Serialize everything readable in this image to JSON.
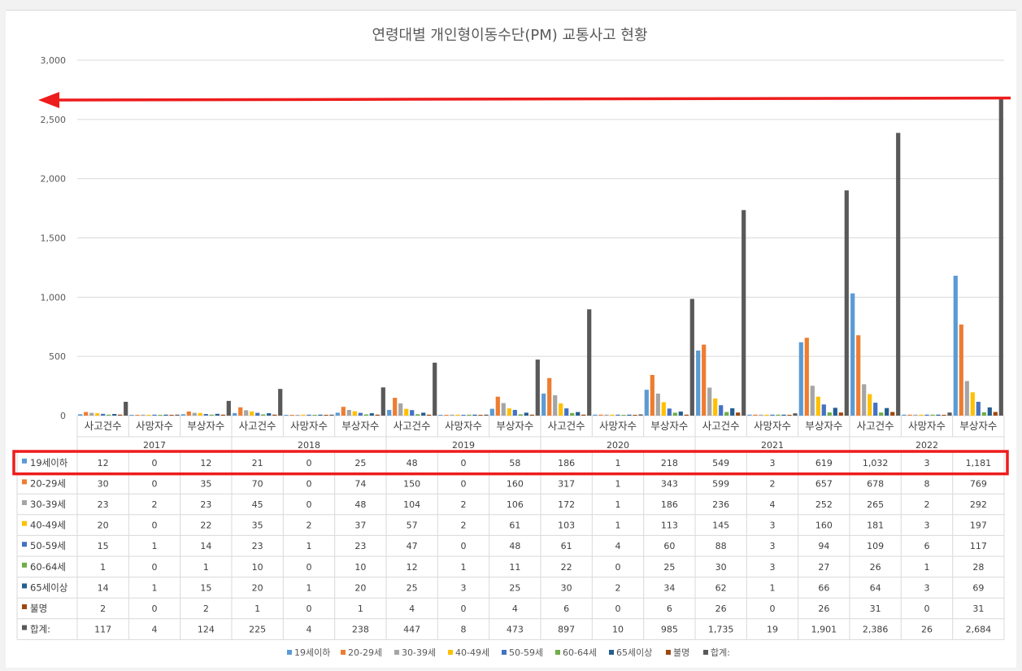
{
  "chart_data": {
    "type": "bar",
    "title": "연령대별 개인형이동수단(PM) 교통사고 현황",
    "ylim": [
      0,
      3000
    ],
    "yticks": [
      0,
      500,
      1000,
      1500,
      2000,
      2500,
      3000
    ],
    "ytick_labels": [
      "0",
      "500",
      "1,000",
      "1,500",
      "2,000",
      "2,500",
      "3,000"
    ],
    "grid": true,
    "legend_position": "bottom",
    "years": [
      "2017",
      "2018",
      "2019",
      "2020",
      "2021",
      "2022"
    ],
    "subcategories": [
      "사고건수",
      "사망자수",
      "부상자수"
    ],
    "series": [
      {
        "name": "19세이하",
        "color": "#5b9bd5",
        "values": [
          12,
          0,
          12,
          21,
          0,
          25,
          48,
          0,
          58,
          186,
          1,
          218,
          549,
          3,
          619,
          1032,
          3,
          1181
        ],
        "labels": [
          "12",
          "0",
          "12",
          "21",
          "0",
          "25",
          "48",
          "0",
          "58",
          "186",
          "1",
          "218",
          "549",
          "3",
          "619",
          "1,032",
          "3",
          "1,181"
        ]
      },
      {
        "name": "20-29세",
        "color": "#ed7d31",
        "values": [
          30,
          0,
          35,
          70,
          0,
          74,
          150,
          0,
          160,
          317,
          1,
          343,
          599,
          2,
          657,
          678,
          8,
          769
        ],
        "labels": [
          "30",
          "0",
          "35",
          "70",
          "0",
          "74",
          "150",
          "0",
          "160",
          "317",
          "1",
          "343",
          "599",
          "2",
          "657",
          "678",
          "8",
          "769"
        ]
      },
      {
        "name": "30-39세",
        "color": "#a5a5a5",
        "values": [
          23,
          2,
          23,
          45,
          0,
          48,
          104,
          2,
          106,
          172,
          1,
          186,
          236,
          4,
          252,
          265,
          2,
          292
        ],
        "labels": [
          "23",
          "2",
          "23",
          "45",
          "0",
          "48",
          "104",
          "2",
          "106",
          "172",
          "1",
          "186",
          "236",
          "4",
          "252",
          "265",
          "2",
          "292"
        ]
      },
      {
        "name": "40-49세",
        "color": "#ffc000",
        "values": [
          20,
          0,
          22,
          35,
          2,
          37,
          57,
          2,
          61,
          103,
          1,
          113,
          145,
          3,
          160,
          181,
          3,
          197
        ],
        "labels": [
          "20",
          "0",
          "22",
          "35",
          "2",
          "37",
          "57",
          "2",
          "61",
          "103",
          "1",
          "113",
          "145",
          "3",
          "160",
          "181",
          "3",
          "197"
        ]
      },
      {
        "name": "50-59세",
        "color": "#4472c4",
        "values": [
          15,
          1,
          14,
          23,
          1,
          23,
          47,
          0,
          48,
          61,
          4,
          60,
          88,
          3,
          94,
          109,
          6,
          117
        ],
        "labels": [
          "15",
          "1",
          "14",
          "23",
          "1",
          "23",
          "47",
          "0",
          "48",
          "61",
          "4",
          "60",
          "88",
          "3",
          "94",
          "109",
          "6",
          "117"
        ]
      },
      {
        "name": "60-64세",
        "color": "#70ad47",
        "values": [
          1,
          0,
          1,
          10,
          0,
          10,
          12,
          1,
          11,
          22,
          0,
          25,
          30,
          3,
          27,
          26,
          1,
          28
        ],
        "labels": [
          "1",
          "0",
          "1",
          "10",
          "0",
          "10",
          "12",
          "1",
          "11",
          "22",
          "0",
          "25",
          "30",
          "3",
          "27",
          "26",
          "1",
          "28"
        ]
      },
      {
        "name": "65세이상",
        "color": "#255e91",
        "values": [
          14,
          1,
          15,
          20,
          1,
          20,
          25,
          3,
          25,
          30,
          2,
          34,
          62,
          1,
          66,
          64,
          3,
          69
        ],
        "labels": [
          "14",
          "1",
          "15",
          "20",
          "1",
          "20",
          "25",
          "3",
          "25",
          "30",
          "2",
          "34",
          "62",
          "1",
          "66",
          "64",
          "3",
          "69"
        ]
      },
      {
        "name": "불명",
        "color": "#9e480e",
        "values": [
          2,
          0,
          2,
          1,
          0,
          1,
          4,
          0,
          4,
          6,
          0,
          6,
          26,
          0,
          26,
          31,
          0,
          31
        ],
        "labels": [
          "2",
          "0",
          "2",
          "1",
          "0",
          "1",
          "4",
          "0",
          "4",
          "6",
          "0",
          "6",
          "26",
          "0",
          "26",
          "31",
          "0",
          "31"
        ]
      },
      {
        "name": "합계:",
        "color": "#595959",
        "values": [
          117,
          4,
          124,
          225,
          4,
          238,
          447,
          8,
          473,
          897,
          10,
          985,
          1735,
          19,
          1901,
          2386,
          26,
          2684
        ],
        "labels": [
          "117",
          "4",
          "124",
          "225",
          "4",
          "238",
          "447",
          "8",
          "473",
          "897",
          "10",
          "985",
          "1,735",
          "19",
          "1,901",
          "2,386",
          "26",
          "2,684"
        ]
      }
    ],
    "annotations": {
      "arrow_color": "#ee1c1c",
      "highlight_row": "19세이하",
      "highlight_color": "#ee1c1c"
    }
  }
}
